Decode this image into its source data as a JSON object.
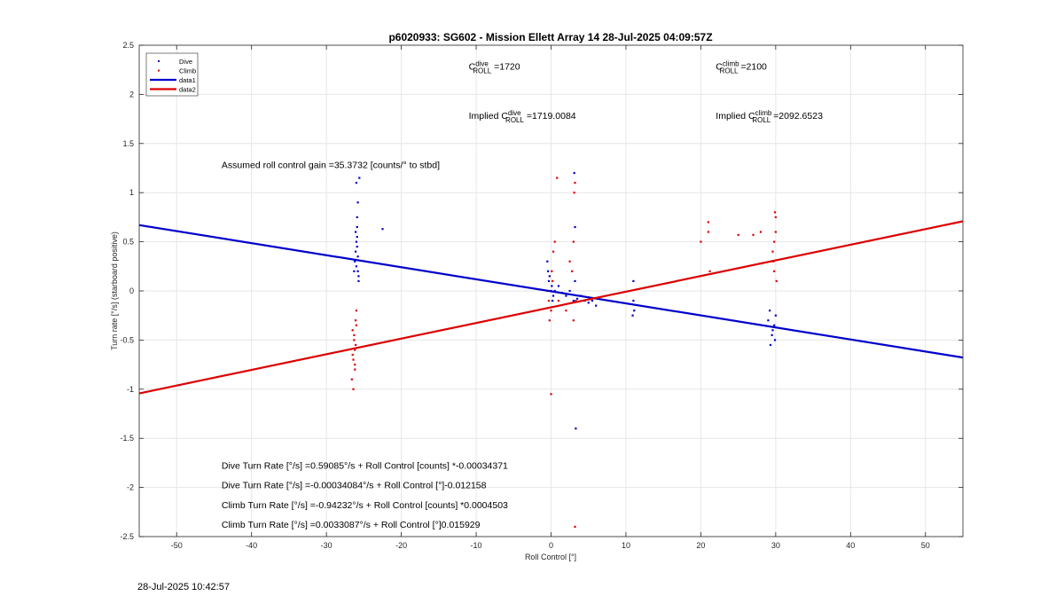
{
  "chart_data": {
    "type": "scatter",
    "title": "p6020933: SG602 - Mission Ellett Array 14 28-Jul-2025 04:09:57Z",
    "xlabel": "Roll Control [°]",
    "ylabel": "Turn rate [°/s] (starboard positive)",
    "xlim": [
      -55,
      55
    ],
    "ylim": [
      -2.5,
      2.5
    ],
    "xticks": [
      -50,
      -40,
      -30,
      -20,
      -10,
      0,
      10,
      20,
      30,
      40,
      50
    ],
    "yticks": [
      -2.5,
      -2,
      -1.5,
      -1,
      -0.5,
      0,
      0.5,
      1,
      1.5,
      2,
      2.5
    ],
    "grid": true,
    "legend_position": "top-left",
    "colors": {
      "dive": "#0000cc",
      "climb": "#dd0000",
      "grid": "#e6e6e6",
      "axis": "#262626"
    },
    "series": [
      {
        "name": "Dive",
        "kind": "points",
        "color": "#0000cc",
        "x": [
          -26.2,
          -26.0,
          -25.9,
          -25.8,
          -25.7,
          -26.1,
          -25.9,
          -25.8,
          -26.0,
          -25.7,
          -26.3,
          -25.9,
          -25.8,
          -26.0,
          -25.6,
          -26.1,
          -25.9,
          -22.5,
          -0.5,
          -0.3,
          0.0,
          0.2,
          -0.4,
          0.1,
          0.3,
          -0.2,
          0.5,
          1.0,
          1.5,
          2.0,
          2.5,
          3.0,
          3.2,
          3.5,
          4.0,
          4.5,
          5.0,
          5.5,
          6.0,
          3.1,
          3.2,
          3.3,
          11.0,
          11.0,
          11.1,
          10.9,
          29.0,
          29.5,
          29.8,
          29.3,
          30.0,
          29.6,
          29.2,
          29.9
        ],
        "y": [
          0.3,
          0.5,
          0.65,
          0.2,
          0.1,
          0.4,
          0.55,
          0.35,
          0.25,
          0.15,
          0.2,
          0.45,
          0.9,
          1.1,
          1.15,
          0.6,
          0.75,
          0.63,
          0.3,
          0.1,
          0.0,
          -0.1,
          0.2,
          0.05,
          -0.05,
          0.15,
          0.0,
          0.05,
          -0.02,
          -0.05,
          0.0,
          -0.1,
          0.1,
          -0.08,
          -0.05,
          -0.1,
          -0.12,
          -0.1,
          -0.15,
          1.2,
          0.65,
          -1.4,
          0.1,
          -0.1,
          -0.2,
          -0.25,
          -0.3,
          -0.45,
          -0.35,
          -0.55,
          -0.25,
          -0.4,
          -0.2,
          -0.5
        ]
      },
      {
        "name": "Climb",
        "kind": "points",
        "color": "#dd0000",
        "x": [
          -26.5,
          -26.3,
          -26.2,
          -26.1,
          -26.0,
          -26.4,
          -26.2,
          -26.6,
          -26.1,
          -26.3,
          -26.0,
          -26.5,
          -26.2,
          -26.4,
          -0.5,
          -0.3,
          0.0,
          0.2,
          -0.2,
          0.1,
          0.3,
          0.5,
          1.0,
          2.0,
          2.5,
          3.0,
          3.1,
          3.2,
          3.3,
          3.0,
          2.8,
          3.2,
          0.0,
          0.8,
          20.0,
          21.0,
          21.2,
          21.0,
          25.0,
          27.0,
          28.0,
          29.6,
          29.8,
          30.0,
          29.9,
          29.7,
          30.1,
          29.8,
          30.0
        ],
        "y": [
          -0.4,
          -0.5,
          -0.6,
          -0.3,
          -0.2,
          -0.7,
          -0.8,
          -0.9,
          -0.55,
          -0.45,
          -0.35,
          -0.65,
          -0.75,
          -1.0,
          0.0,
          -0.1,
          -0.2,
          0.1,
          -0.3,
          0.2,
          0.4,
          0.5,
          -0.1,
          -0.2,
          0.3,
          0.5,
          1.0,
          1.1,
          -0.1,
          -0.3,
          0.2,
          -2.4,
          -1.05,
          1.15,
          0.5,
          0.7,
          0.2,
          0.6,
          0.57,
          0.57,
          0.6,
          0.4,
          0.5,
          0.6,
          0.8,
          0.3,
          0.1,
          0.2,
          0.75
        ]
      },
      {
        "name": "data1",
        "kind": "line",
        "color": "#0000cc",
        "x": [
          -55,
          55
        ],
        "y": [
          0.6698,
          -0.6781
        ]
      },
      {
        "name": "data2",
        "kind": "line",
        "color": "#dd0000",
        "x": [
          -55,
          55
        ],
        "y": [
          -1.0426,
          0.7086
        ]
      }
    ],
    "annotations": [
      {
        "id": "c_dive",
        "prefix": "C",
        "sup": "dive",
        "sub": "ROLL",
        "value": " =1720",
        "x": -11.0,
        "y": 2.25
      },
      {
        "id": "c_climb",
        "prefix": "C",
        "sup": "climb",
        "sub": "ROLL",
        "value": " =2100",
        "x": 22.0,
        "y": 2.25
      },
      {
        "id": "implied_dive",
        "prefix": "Implied C",
        "sup": "dive",
        "sub": "ROLL",
        "value": " =1719.0084",
        "x": -11.0,
        "y": 1.75
      },
      {
        "id": "implied_climb",
        "prefix": "Implied C",
        "sup": "climb",
        "sub": "ROLL",
        "value": " =2092.6523",
        "x": 22.0,
        "y": 1.75
      },
      {
        "id": "gain",
        "text": "Assumed roll control gain =35.3732 [counts/° to stbd]",
        "x": -44.0,
        "y": 1.25
      },
      {
        "id": "eq1",
        "text": "Dive Turn Rate [°/s] =0.59085°/s + Roll Control [counts] *-0.00034371",
        "x": -44.0,
        "y": -1.81
      },
      {
        "id": "eq2",
        "text": "Dive Turn Rate [°/s] =-0.00034084°/s + Roll Control [°]-0.012158",
        "x": -44.0,
        "y": -2.01
      },
      {
        "id": "eq3",
        "text": "Climb Turn Rate [°/s] =-0.94232°/s + Roll Control [counts] *0.0004503",
        "x": -44.0,
        "y": -2.21
      },
      {
        "id": "eq4",
        "text": "Climb Turn Rate [°/s] =0.0033087°/s + Roll Control [°]0.015929",
        "x": -44.0,
        "y": -2.41
      }
    ]
  },
  "footer": {
    "timestamp": "28-Jul-2025 10:42:57"
  }
}
